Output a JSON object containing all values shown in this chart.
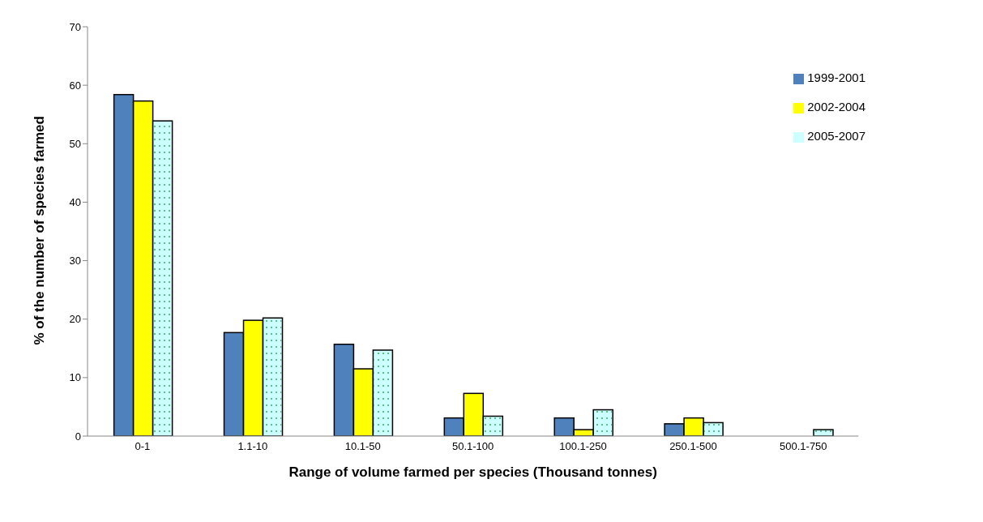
{
  "chart_data": {
    "type": "bar",
    "xlabel": "Range of volume farmed per species (Thousand tonnes)",
    "ylabel": "% of the number of species farmed",
    "categories": [
      "0-1",
      "1.1-10",
      "10.1-50",
      "50.1-100",
      "100.1-250",
      "250.1-500",
      "500.1-750"
    ],
    "series": [
      {
        "name": "1999-2001",
        "color": "#4f81bd",
        "values": [
          58.4,
          17.7,
          15.7,
          3.1,
          3.1,
          2.1,
          0
        ]
      },
      {
        "name": "2002-2004",
        "color": "#ffff00",
        "values": [
          57.3,
          19.8,
          11.5,
          7.3,
          1.1,
          3.1,
          0
        ]
      },
      {
        "name": "2005-2007",
        "color": "#ccffff",
        "values": [
          53.9,
          20.2,
          14.7,
          3.4,
          4.5,
          2.3,
          1.1
        ]
      }
    ],
    "ylim": [
      0,
      70
    ],
    "yticks": [
      0,
      10,
      20,
      30,
      40,
      50,
      60,
      70
    ],
    "grid": false,
    "legend": "top right"
  }
}
